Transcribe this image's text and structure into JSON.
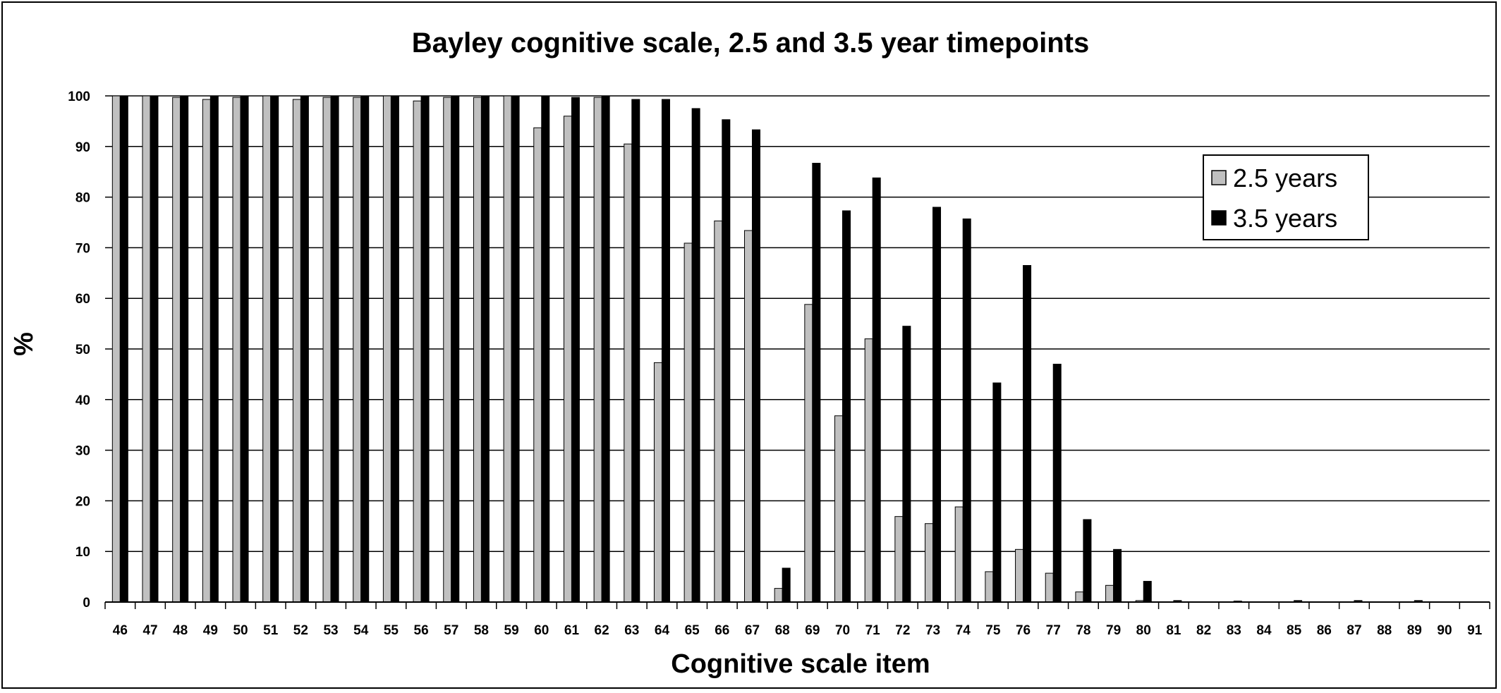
{
  "chart_data": {
    "type": "bar",
    "title": "Bayley cognitive scale, 2.5 and 3.5 year timepoints",
    "xlabel": "Cognitive scale item",
    "ylabel": "%",
    "ylim": [
      0,
      100
    ],
    "yticks": [
      0,
      10,
      20,
      30,
      40,
      50,
      60,
      70,
      80,
      90,
      100
    ],
    "grid": "horizontal",
    "legend_position": "top-right",
    "categories": [
      "46",
      "47",
      "48",
      "49",
      "50",
      "51",
      "52",
      "53",
      "54",
      "55",
      "56",
      "57",
      "58",
      "59",
      "60",
      "61",
      "62",
      "63",
      "64",
      "65",
      "66",
      "67",
      "68",
      "69",
      "70",
      "71",
      "72",
      "73",
      "74",
      "75",
      "76",
      "77",
      "78",
      "79",
      "80",
      "81",
      "82",
      "83",
      "84",
      "85",
      "86",
      "87",
      "88",
      "89",
      "90",
      "91"
    ],
    "series": [
      {
        "name": "2.5 years",
        "color": "#c0c0c0",
        "values": [
          100,
          100,
          99.7,
          99.3,
          99.7,
          100,
          99.3,
          99.7,
          99.7,
          100,
          99,
          99.7,
          99.7,
          100,
          93.7,
          96,
          99.7,
          90.5,
          47.3,
          70.9,
          75.3,
          73.4,
          2.7,
          58.8,
          36.8,
          52,
          16.9,
          15.5,
          18.8,
          6,
          10.4,
          5.7,
          2,
          3.3,
          0.3,
          0,
          0,
          0,
          0,
          0,
          0,
          0,
          0,
          0,
          0,
          0
        ]
      },
      {
        "name": "3.5 years",
        "color": "#000000",
        "values": [
          100,
          100,
          100,
          100,
          100,
          100,
          100,
          100,
          100,
          100,
          100,
          100,
          100,
          100,
          100,
          99.7,
          100,
          99.3,
          99.3,
          97.5,
          95.3,
          93.3,
          6.7,
          86.7,
          77.3,
          83.8,
          54.5,
          78,
          75.7,
          43.3,
          66.5,
          47,
          16.3,
          10.4,
          4.1,
          0.3,
          0,
          0.2,
          0,
          0.3,
          0,
          0.3,
          0,
          0.3,
          0,
          0
        ]
      }
    ]
  }
}
